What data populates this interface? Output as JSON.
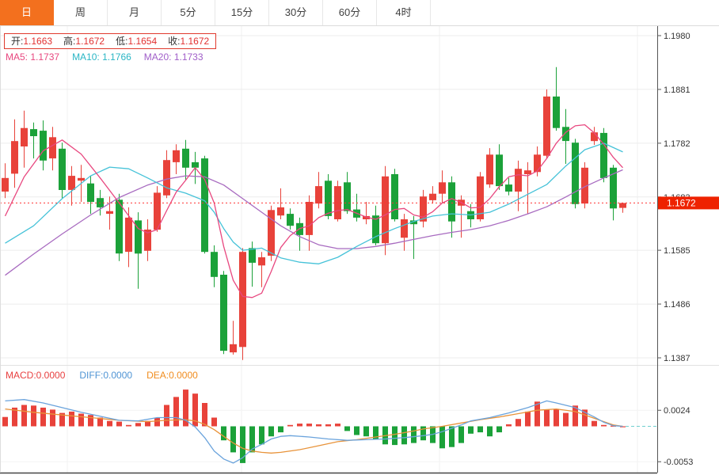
{
  "tabs": {
    "items": [
      {
        "label": "日",
        "active": true
      },
      {
        "label": "周",
        "active": false
      },
      {
        "label": "月",
        "active": false
      },
      {
        "label": "5分",
        "active": false
      },
      {
        "label": "15分",
        "active": false
      },
      {
        "label": "30分",
        "active": false
      },
      {
        "label": "60分",
        "active": false
      },
      {
        "label": "4时",
        "active": false
      }
    ]
  },
  "legend": {
    "open_label": "开:",
    "open": "1.1663",
    "high_label": "高:",
    "high": "1.1672",
    "low_label": "低:",
    "low": "1.1654",
    "close_label": "收:",
    "close": "1.1672",
    "ma5_label": "MA5:",
    "ma5": "1.1737",
    "ma10_label": "MA10:",
    "ma10": "1.1766",
    "ma20_label": "MA20:",
    "ma20": "1.1733"
  },
  "macd_legend": {
    "macd_label": "MACD:",
    "macd": "0.0000",
    "diff_label": "DIFF:",
    "diff": "0.0000",
    "dea_label": "DEA:",
    "dea": "0.0000"
  },
  "price_badge": "1.1672",
  "colors": {
    "up": "#e8423a",
    "down": "#1ba139",
    "ma5": "#e8477f",
    "ma10": "#45c2d8",
    "ma20": "#a86bc0",
    "diff": "#6aa3dc",
    "dea": "#e8933a",
    "accent": "#f3701e",
    "badge": "#ee2200",
    "dotted": "#ff3333",
    "grid": "#ececec",
    "axis_text": "#333333",
    "spine": "#555555"
  },
  "chart_data": {
    "type": "candlestick+macd",
    "title": "",
    "legend_position": "top-left",
    "grid": true,
    "price_axis": {
      "ticks": [
        1.198,
        1.1881,
        1.1782,
        1.1683,
        1.1585,
        1.1486,
        1.1387
      ],
      "min": 1.1387,
      "max": 1.198
    },
    "macd_axis": {
      "ticks": [
        0.0024,
        -0.0053
      ]
    },
    "current_price": 1.1672,
    "candles": [
      [
        1.1693,
        1.1745,
        1.1681,
        1.1718
      ],
      [
        1.1726,
        1.1826,
        1.17,
        1.1786
      ],
      [
        1.1776,
        1.1842,
        1.1737,
        1.181
      ],
      [
        1.1808,
        1.182,
        1.1754,
        1.1795
      ],
      [
        1.1805,
        1.1824,
        1.1732,
        1.175
      ],
      [
        1.1754,
        1.1812,
        1.1732,
        1.1793
      ],
      [
        1.1772,
        1.1783,
        1.1681,
        1.1696
      ],
      [
        1.1696,
        1.174,
        1.1667,
        1.1722
      ],
      [
        1.1713,
        1.1742,
        1.1674,
        1.1718
      ],
      [
        1.1708,
        1.1722,
        1.1652,
        1.1674
      ],
      [
        1.1681,
        1.1696,
        1.1649,
        1.1664
      ],
      [
        1.1652,
        1.1684,
        1.1623,
        1.1657
      ],
      [
        1.1678,
        1.1689,
        1.1565,
        1.1579
      ],
      [
        1.1582,
        1.1664,
        1.1554,
        1.1645
      ],
      [
        1.164,
        1.1655,
        1.1514,
        1.1579
      ],
      [
        1.1584,
        1.1642,
        1.1565,
        1.1623
      ],
      [
        1.1623,
        1.1703,
        1.1619,
        1.1691
      ],
      [
        1.1686,
        1.1769,
        1.1681,
        1.1751
      ],
      [
        1.1747,
        1.178,
        1.1725,
        1.1769
      ],
      [
        1.1772,
        1.1788,
        1.1715,
        1.1737
      ],
      [
        1.1747,
        1.1766,
        1.1707,
        1.1737
      ],
      [
        1.1754,
        1.1759,
        1.1579,
        1.1582
      ],
      [
        1.1582,
        1.1594,
        1.1517,
        1.1536
      ],
      [
        1.154,
        1.1547,
        1.1394,
        1.14
      ],
      [
        1.1397,
        1.1455,
        1.1393,
        1.1412
      ],
      [
        1.1407,
        1.1589,
        1.1383,
        1.1582
      ],
      [
        1.1589,
        1.1601,
        1.1518,
        1.1562
      ],
      [
        1.1557,
        1.1582,
        1.1517,
        1.1572
      ],
      [
        1.1575,
        1.1667,
        1.1565,
        1.1659
      ],
      [
        1.1649,
        1.1699,
        1.1642,
        1.1664
      ],
      [
        1.1652,
        1.1662,
        1.1623,
        1.163
      ],
      [
        1.1635,
        1.1645,
        1.1584,
        1.1613
      ],
      [
        1.1613,
        1.1686,
        1.1584,
        1.1674
      ],
      [
        1.1671,
        1.1729,
        1.1662,
        1.1703
      ],
      [
        1.1713,
        1.1725,
        1.1642,
        1.1648
      ],
      [
        1.1642,
        1.1713,
        1.1638,
        1.1703
      ],
      [
        1.171,
        1.1729,
        1.1652,
        1.1657
      ],
      [
        1.166,
        1.1689,
        1.1638,
        1.1645
      ],
      [
        1.1642,
        1.1674,
        1.1633,
        1.1648
      ],
      [
        1.1649,
        1.1667,
        1.1594,
        1.1598
      ],
      [
        1.1598,
        1.174,
        1.1576,
        1.1721
      ],
      [
        1.1725,
        1.1735,
        1.1638,
        1.1642
      ],
      [
        1.1608,
        1.1652,
        1.1584,
        1.1642
      ],
      [
        1.164,
        1.1648,
        1.1569,
        1.1633
      ],
      [
        1.1638,
        1.1696,
        1.1627,
        1.1684
      ],
      [
        1.1677,
        1.1703,
        1.1671,
        1.1689
      ],
      [
        1.1689,
        1.1732,
        1.1671,
        1.171
      ],
      [
        1.171,
        1.1721,
        1.1608,
        1.1638
      ],
      [
        1.1667,
        1.1686,
        1.1608,
        1.1678
      ],
      [
        1.1657,
        1.167,
        1.1627,
        1.1642
      ],
      [
        1.1642,
        1.1729,
        1.1638,
        1.1721
      ],
      [
        1.1706,
        1.1773,
        1.17,
        1.1761
      ],
      [
        1.1761,
        1.178,
        1.1696,
        1.1703
      ],
      [
        1.1706,
        1.1718,
        1.1686,
        1.1693
      ],
      [
        1.1693,
        1.175,
        1.1657,
        1.1735
      ],
      [
        1.1725,
        1.1747,
        1.1652,
        1.1732
      ],
      [
        1.1729,
        1.1776,
        1.1721,
        1.1761
      ],
      [
        1.1759,
        1.1881,
        1.1754,
        1.1868
      ],
      [
        1.1868,
        1.1922,
        1.1805,
        1.181
      ],
      [
        1.1812,
        1.1845,
        1.1744,
        1.1786
      ],
      [
        1.1783,
        1.179,
        1.1662,
        1.167
      ],
      [
        1.1671,
        1.1747,
        1.1662,
        1.1737
      ],
      [
        1.1786,
        1.1812,
        1.1779,
        1.1802
      ],
      [
        1.1801,
        1.181,
        1.171,
        1.1718
      ],
      [
        1.1737,
        1.1742,
        1.164,
        1.1662
      ],
      [
        1.1663,
        1.1672,
        1.1654,
        1.1672
      ]
    ],
    "ma5_points": [
      [
        0,
        1.1648
      ],
      [
        2,
        1.172
      ],
      [
        4,
        1.1768
      ],
      [
        6,
        1.1788
      ],
      [
        8,
        1.1762
      ],
      [
        10,
        1.1718
      ],
      [
        12,
        1.1672
      ],
      [
        14,
        1.1625
      ],
      [
        15,
        1.1617
      ],
      [
        16,
        1.1623
      ],
      [
        17,
        1.1658
      ],
      [
        18,
        1.1692
      ],
      [
        19,
        1.1714
      ],
      [
        20,
        1.1737
      ],
      [
        21,
        1.1715
      ],
      [
        22,
        1.1672
      ],
      [
        23,
        1.1592
      ],
      [
        24,
        1.153
      ],
      [
        25,
        1.15
      ],
      [
        26,
        1.1498
      ],
      [
        27,
        1.1506
      ],
      [
        28,
        1.1546
      ],
      [
        29,
        1.159
      ],
      [
        30,
        1.1612
      ],
      [
        31,
        1.1625
      ],
      [
        32,
        1.163
      ],
      [
        33,
        1.1645
      ],
      [
        34,
        1.1653
      ],
      [
        35,
        1.1658
      ],
      [
        36,
        1.166
      ],
      [
        37,
        1.1653
      ],
      [
        38,
        1.1646
      ],
      [
        39,
        1.1642
      ],
      [
        40,
        1.165
      ],
      [
        41,
        1.166
      ],
      [
        42,
        1.1662
      ],
      [
        43,
        1.165
      ],
      [
        44,
        1.1646
      ],
      [
        45,
        1.1656
      ],
      [
        46,
        1.1672
      ],
      [
        47,
        1.168
      ],
      [
        48,
        1.1673
      ],
      [
        49,
        1.1663
      ],
      [
        50,
        1.1664
      ],
      [
        51,
        1.168
      ],
      [
        52,
        1.1702
      ],
      [
        53,
        1.172
      ],
      [
        54,
        1.1724
      ],
      [
        55,
        1.1722
      ],
      [
        56,
        1.1731
      ],
      [
        57,
        1.1754
      ],
      [
        58,
        1.1782
      ],
      [
        59,
        1.1802
      ],
      [
        60,
        1.1814
      ],
      [
        61,
        1.1816
      ],
      [
        62,
        1.1801
      ],
      [
        63,
        1.178
      ],
      [
        64,
        1.1756
      ],
      [
        65,
        1.1737
      ]
    ],
    "ma10_points": [
      [
        0,
        1.1598
      ],
      [
        3,
        1.163
      ],
      [
        6,
        1.168
      ],
      [
        9,
        1.1722
      ],
      [
        11,
        1.1738
      ],
      [
        13,
        1.1735
      ],
      [
        15,
        1.1718
      ],
      [
        17,
        1.17
      ],
      [
        19,
        1.169
      ],
      [
        21,
        1.1676
      ],
      [
        22,
        1.1655
      ],
      [
        23,
        1.1625
      ],
      [
        24,
        1.16
      ],
      [
        25,
        1.1585
      ],
      [
        27,
        1.1589
      ],
      [
        29,
        1.1571
      ],
      [
        31,
        1.1563
      ],
      [
        33,
        1.156
      ],
      [
        35,
        1.1572
      ],
      [
        37,
        1.1592
      ],
      [
        39,
        1.161
      ],
      [
        41,
        1.1625
      ],
      [
        43,
        1.1638
      ],
      [
        45,
        1.1648
      ],
      [
        47,
        1.1652
      ],
      [
        49,
        1.165
      ],
      [
        51,
        1.1655
      ],
      [
        53,
        1.167
      ],
      [
        55,
        1.1688
      ],
      [
        57,
        1.1706
      ],
      [
        59,
        1.174
      ],
      [
        61,
        1.177
      ],
      [
        63,
        1.1782
      ],
      [
        65,
        1.1766
      ]
    ],
    "ma20_points": [
      [
        0,
        1.1539
      ],
      [
        3,
        1.1578
      ],
      [
        6,
        1.1615
      ],
      [
        9,
        1.165
      ],
      [
        12,
        1.1682
      ],
      [
        15,
        1.1705
      ],
      [
        17,
        1.1716
      ],
      [
        19,
        1.1722
      ],
      [
        21,
        1.172
      ],
      [
        23,
        1.1705
      ],
      [
        25,
        1.168
      ],
      [
        27,
        1.1655
      ],
      [
        29,
        1.163
      ],
      [
        31,
        1.161
      ],
      [
        33,
        1.1595
      ],
      [
        35,
        1.1588
      ],
      [
        37,
        1.1588
      ],
      [
        39,
        1.1592
      ],
      [
        41,
        1.1598
      ],
      [
        43,
        1.1605
      ],
      [
        45,
        1.1612
      ],
      [
        47,
        1.1618
      ],
      [
        49,
        1.1623
      ],
      [
        51,
        1.163
      ],
      [
        53,
        1.164
      ],
      [
        55,
        1.1652
      ],
      [
        57,
        1.1665
      ],
      [
        59,
        1.1683
      ],
      [
        61,
        1.1702
      ],
      [
        63,
        1.1718
      ],
      [
        65,
        1.1733
      ]
    ],
    "macd_hist": [
      0.0014,
      0.0028,
      0.0032,
      0.0031,
      0.0028,
      0.0025,
      0.002,
      0.0022,
      0.0019,
      0.0017,
      0.0013,
      0.0008,
      0.0007,
      0.0002,
      0.0005,
      0.0008,
      0.0013,
      0.0032,
      0.0044,
      0.0055,
      0.0049,
      0.0035,
      0.0013,
      -0.0021,
      -0.0039,
      -0.0055,
      -0.0039,
      -0.0027,
      -0.0015,
      -0.0009,
      0.0002,
      0.0004,
      0.0004,
      0.0003,
      0.0003,
      0.0004,
      -0.0007,
      -0.0013,
      -0.0015,
      -0.0019,
      -0.0027,
      -0.0028,
      -0.0027,
      -0.0025,
      -0.0021,
      -0.0025,
      -0.0033,
      -0.0031,
      -0.0025,
      -0.0011,
      -0.0009,
      -0.0015,
      -0.0009,
      0.0003,
      0.0011,
      0.0022,
      0.0037,
      0.0025,
      0.0026,
      0.002,
      0.0031,
      0.0025,
      0.0008,
      0.0002,
      0.0001,
      0.0
    ],
    "diff_points": [
      [
        0,
        0.0038
      ],
      [
        2,
        0.004
      ],
      [
        4,
        0.0035
      ],
      [
        6,
        0.0028
      ],
      [
        8,
        0.0021
      ],
      [
        10,
        0.0015
      ],
      [
        12,
        0.0009
      ],
      [
        14,
        0.0008
      ],
      [
        16,
        0.0013
      ],
      [
        18,
        0.0013
      ],
      [
        19,
        0.0009
      ],
      [
        20,
        -0.0001
      ],
      [
        21,
        -0.0017
      ],
      [
        22,
        -0.0037
      ],
      [
        23,
        -0.0049
      ],
      [
        24,
        -0.0055
      ],
      [
        25,
        -0.0047
      ],
      [
        26,
        -0.0034
      ],
      [
        27,
        -0.0027
      ],
      [
        28,
        -0.0019
      ],
      [
        29,
        -0.0015
      ],
      [
        30,
        -0.0014
      ],
      [
        32,
        -0.0016
      ],
      [
        34,
        -0.0019
      ],
      [
        36,
        -0.0021
      ],
      [
        38,
        -0.002
      ],
      [
        40,
        -0.0019
      ],
      [
        42,
        -0.0017
      ],
      [
        44,
        -0.0014
      ],
      [
        45,
        -0.0012
      ],
      [
        46,
        -0.0008
      ],
      [
        47,
        -0.0003
      ],
      [
        48,
        0.0002
      ],
      [
        49,
        0.0008
      ],
      [
        51,
        0.0013
      ],
      [
        53,
        0.002
      ],
      [
        55,
        0.0028
      ],
      [
        57,
        0.0038
      ],
      [
        58,
        0.0035
      ],
      [
        60,
        0.0028
      ],
      [
        62,
        0.0014
      ],
      [
        63,
        0.0006
      ],
      [
        64,
        0.0001
      ],
      [
        65,
        0.0
      ]
    ],
    "dea_points": [
      [
        0,
        0.0026
      ],
      [
        3,
        0.0021
      ],
      [
        6,
        0.0017
      ],
      [
        9,
        0.0013
      ],
      [
        12,
        0.0009
      ],
      [
        15,
        0.0007
      ],
      [
        17,
        0.0009
      ],
      [
        19,
        0.001
      ],
      [
        20,
        0.0008
      ],
      [
        21,
        0.0003
      ],
      [
        22,
        -0.0005
      ],
      [
        23,
        -0.0015
      ],
      [
        24,
        -0.0025
      ],
      [
        25,
        -0.0033
      ],
      [
        26,
        -0.0037
      ],
      [
        27,
        -0.0039
      ],
      [
        28,
        -0.004
      ],
      [
        29,
        -0.0039
      ],
      [
        31,
        -0.0035
      ],
      [
        33,
        -0.0029
      ],
      [
        35,
        -0.0023
      ],
      [
        37,
        -0.002
      ],
      [
        39,
        -0.0016
      ],
      [
        41,
        -0.0012
      ],
      [
        43,
        -0.0007
      ],
      [
        44,
        -0.0004
      ],
      [
        46,
        0.0
      ],
      [
        48,
        0.0005
      ],
      [
        50,
        0.001
      ],
      [
        52,
        0.0014
      ],
      [
        54,
        0.0019
      ],
      [
        56,
        0.0024
      ],
      [
        58,
        0.0026
      ],
      [
        60,
        0.0022
      ],
      [
        62,
        0.0012
      ],
      [
        64,
        0.0002
      ],
      [
        65,
        0.0
      ]
    ]
  }
}
